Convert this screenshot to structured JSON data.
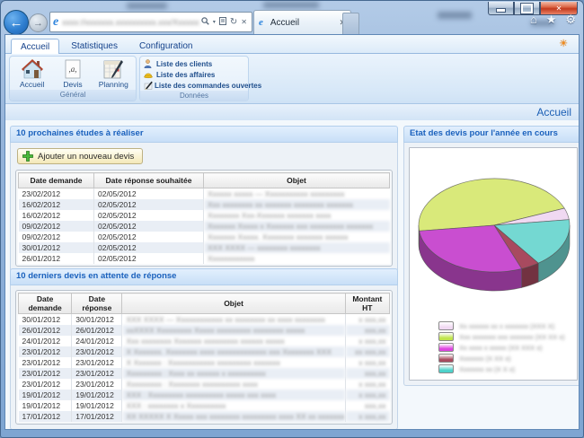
{
  "window": {
    "minimize_label": "minimize",
    "maximize_label": "maximize",
    "close_label": "close"
  },
  "browser": {
    "url_redacted": "xxxx://xxxxxxx.xxxxxxxxxx.xxx/Xxxxxxx.xxxx",
    "back_glyph": "←",
    "forward_glyph": "→",
    "search_caret": "▾",
    "refresh_glyph": "↻",
    "stop_glyph": "✕",
    "tab_title": "Accueil",
    "tab_close_glyph": "✕",
    "home_glyph": "⌂",
    "star_glyph": "★",
    "gear_glyph": "⚙",
    "ie_glyph": "e"
  },
  "ribbon": {
    "tabs": [
      {
        "label": "Accueil",
        "active": true
      },
      {
        "label": "Statistiques",
        "active": false
      },
      {
        "label": "Configuration",
        "active": false
      }
    ],
    "groups": [
      {
        "label": "Général",
        "buttons": [
          {
            "label": "Accueil"
          },
          {
            "label": "Devis"
          },
          {
            "label": "Planning"
          }
        ]
      },
      {
        "label": "Données",
        "links": [
          {
            "label": "Liste des clients"
          },
          {
            "label": "Liste des affaires"
          },
          {
            "label": "Liste des commandes ouvertes"
          }
        ]
      }
    ],
    "sun_glyph": "☀"
  },
  "page": {
    "title": "Accueil"
  },
  "sections": {
    "etudes": {
      "title": "10 prochaines études à réaliser",
      "add_button_label": "Ajouter un nouveau devis",
      "columns": [
        "Date demande",
        "Date réponse souhaitée",
        "Objet"
      ],
      "rows": [
        {
          "demande": "23/02/2012",
          "reponse": "02/05/2012",
          "objet_redacted": "Xxxxxx xxxxx — Xxxxxxxxxxx xxxxxxxxx"
        },
        {
          "demande": "16/02/2012",
          "reponse": "02/05/2012",
          "objet_redacted": "Xxx xxxxxxxx xx xxxxxxx xxxxxxxx xxxxxxx"
        },
        {
          "demande": "16/02/2012",
          "reponse": "02/05/2012",
          "objet_redacted": "Xxxxxxxx Xxx-Xxxxxxx xxxxxxx xxxx"
        },
        {
          "demande": "09/02/2012",
          "reponse": "02/05/2012",
          "objet_redacted": "Xxxxxxx Xxxxx x Xxxxxxx xxx xxxxxxxxx xxxxxxx"
        },
        {
          "demande": "09/02/2012",
          "reponse": "02/05/2012",
          "objet_redacted": "Xxxxxxx Xxxxx. Xxxxxxxx xxxxxxx xxxxxx"
        },
        {
          "demande": "30/01/2012",
          "reponse": "02/05/2012",
          "objet_redacted": "XXX XXXX — xxxxxxxx xxxxxxxx"
        },
        {
          "demande": "26/01/2012",
          "reponse": "02/05/2012",
          "objet_redacted": "Xxxxxxxxxxxx"
        }
      ]
    },
    "devis": {
      "title": "10 derniers devis en attente de réponse",
      "columns": [
        "Date demande",
        "Date réponse",
        "Objet",
        "Montant HT"
      ],
      "rows": [
        {
          "demande": "30/01/2012",
          "reponse": "30/01/2012",
          "objet_redacted": "XXX XXXX — Xxxxxxxxxxxx xx xxxxxxxx xx xxxx xxxxxxxx",
          "montant_redacted": "x xxx,xx"
        },
        {
          "demande": "26/01/2012",
          "reponse": "26/01/2012",
          "objet_redacted": "xxXXXX Xxxxxxxxx Xxxxx xxxxxxxxx xxxxxxxx xxxxx",
          "montant_redacted": "xxx,xx"
        },
        {
          "demande": "24/01/2012",
          "reponse": "24/01/2012",
          "objet_redacted": "Xxx xxxxxxxx Xxxxxxx xxxxxxxxx xxxxxx xxxxx",
          "montant_redacted": "x xxx,xx"
        },
        {
          "demande": "23/01/2012",
          "reponse": "23/01/2012",
          "objet_redacted": "X Xxxxxxx. Xxxxxxxx xxxx xxxxxxxxxxxxx xxx Xxxxxxxx XXX",
          "montant_redacted": "xx xxx,xx"
        },
        {
          "demande": "23/01/2012",
          "reponse": "23/01/2012",
          "objet_redacted": "X Xxxxxxx : Xxxxxxxxxxxx xxxxxxxxx xxxxxxx",
          "montant_redacted": "x xxx,xx"
        },
        {
          "demande": "23/01/2012",
          "reponse": "23/01/2012",
          "objet_redacted": "Xxxxxxxxx : Xxxx xx xxxxxx x xxxxxxxxxx",
          "montant_redacted": "xxx,xx"
        },
        {
          "demande": "23/01/2012",
          "reponse": "23/01/2012",
          "objet_redacted": "Xxxxxxxxx : Xxxxxxxx xxxxxxxxxx xxxx",
          "montant_redacted": "x xxx,xx"
        },
        {
          "demande": "19/01/2012",
          "reponse": "19/01/2012",
          "objet_redacted": "XXX : Xxxxxxxxx xxxxxxxxxx xxxxx xxx xxxx",
          "montant_redacted": "x xxx,xx"
        },
        {
          "demande": "19/01/2012",
          "reponse": "19/01/2012",
          "objet_redacted": "XXX : xxxxxxxx x Xxxxxxxxxx",
          "montant_redacted": "xxx,xx"
        },
        {
          "demande": "17/01/2012",
          "reponse": "17/01/2012",
          "objet_redacted": "XX XXXXX X Xxxxx xxx xxxxxxxx xxxxxxxxx xxxx XX xx xxxxxxx",
          "montant_redacted": "x xxx,xx"
        }
      ]
    }
  },
  "chart_data": {
    "type": "pie",
    "title": "Etat des devis pour l'année en cours",
    "style": "3d",
    "start_angle_deg": 173,
    "slices": [
      {
        "name": "green-slice",
        "pct": 46,
        "color": "#d9e97a"
      },
      {
        "name": "pink-slice",
        "pct": 4,
        "color": "#f0d9f2"
      },
      {
        "name": "cyan-slice",
        "pct": 17,
        "color": "#74d8d2"
      },
      {
        "name": "maroon-slice",
        "pct": 4,
        "color": "#a84a5f"
      },
      {
        "name": "magenta-slice",
        "pct": 29,
        "color": "#c94ed0"
      }
    ],
    "legend_position": "bottom",
    "labels_redacted": true,
    "legend": [
      {
        "color": "#f0d9f2",
        "label_redacted": "Xx xxxxxx xx x xxxxxxx (XXX X)"
      },
      {
        "color": "#c0e44c",
        "label_redacted": "Xxx xxxxxxx xxx xxxxxxx (XX XX x)"
      },
      {
        "color": "#dd44e0",
        "label_redacted": "Xx xxxx x xxxxx (XX XXX x)"
      },
      {
        "color": "#a84a5f",
        "label_redacted": "Xxxxxxx (X XX x)"
      },
      {
        "color": "#4cd2ca",
        "label_redacted": "Xxxxxxx xx (X X x)"
      }
    ]
  }
}
